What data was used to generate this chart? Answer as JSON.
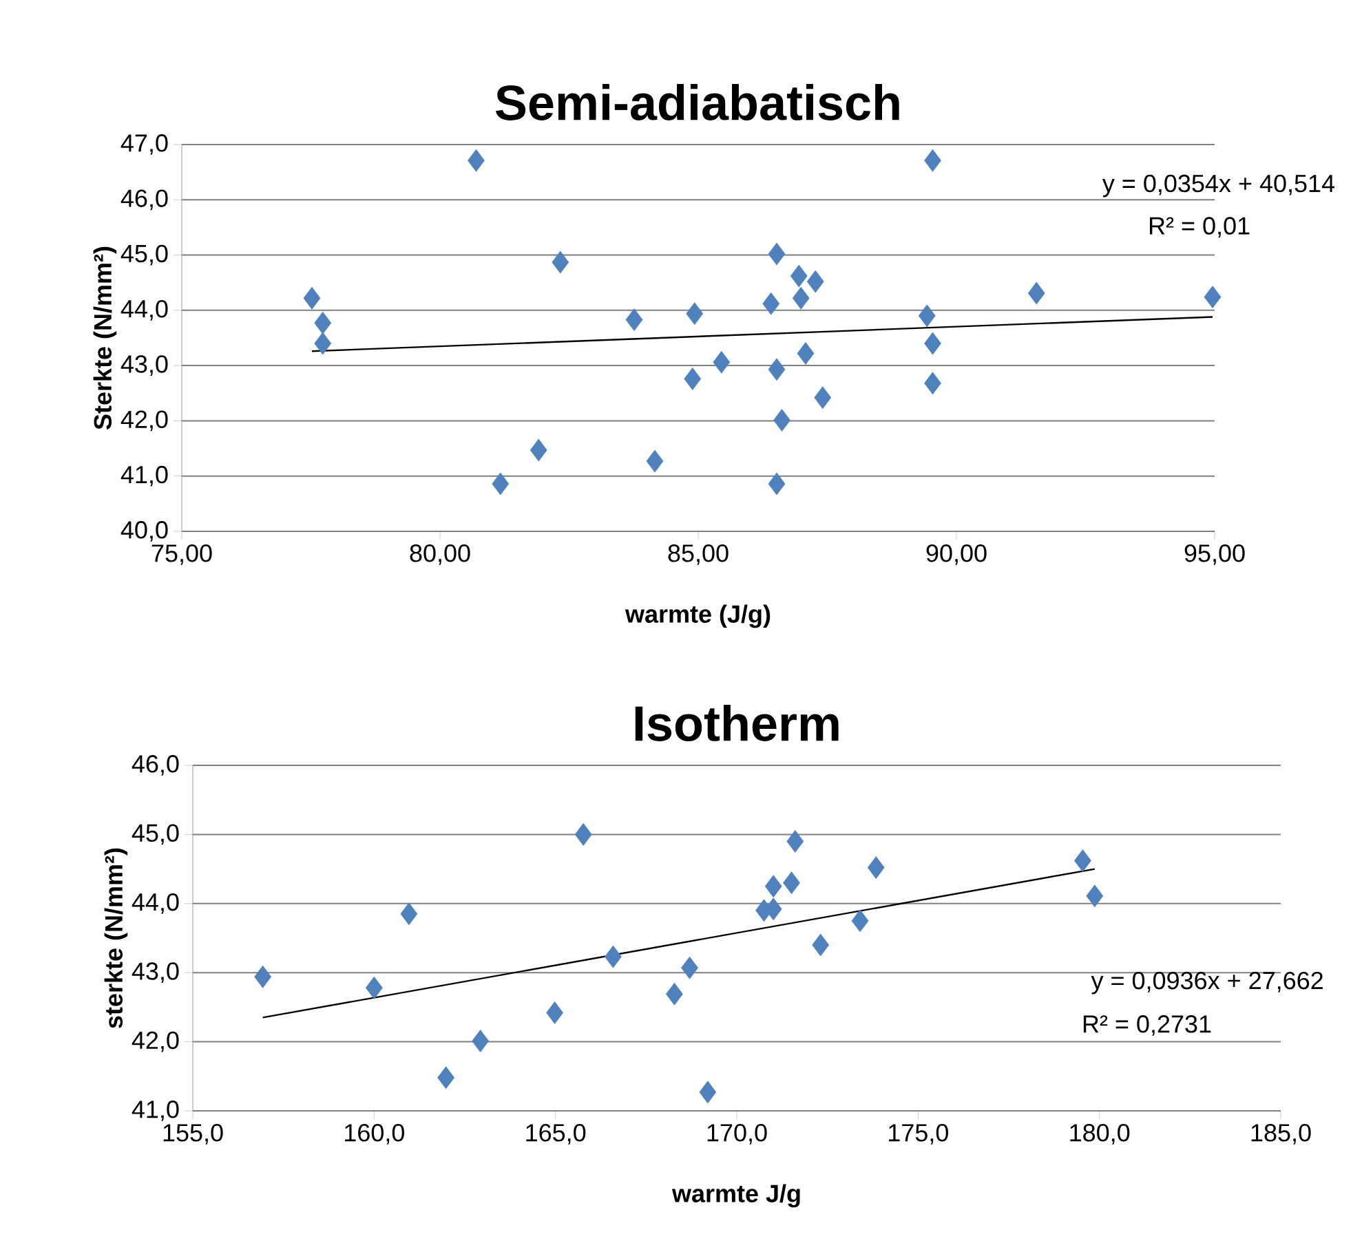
{
  "chart_data": [
    {
      "type": "scatter",
      "title": "Semi-adiabatisch",
      "xlabel": "warmte (J/g)",
      "ylabel": "Sterkte (N/mm²)",
      "xlim": [
        75,
        95
      ],
      "ylim": [
        40,
        47
      ],
      "xticks": [
        {
          "value": 75,
          "label": "75,00"
        },
        {
          "value": 80,
          "label": "80,00"
        },
        {
          "value": 85,
          "label": "85,00"
        },
        {
          "value": 90,
          "label": "90,00"
        },
        {
          "value": 95,
          "label": "95,00"
        }
      ],
      "yticks": [
        {
          "value": 40,
          "label": "40,0"
        },
        {
          "value": 41,
          "label": "41,0"
        },
        {
          "value": 42,
          "label": "42,0"
        },
        {
          "value": 43,
          "label": "43,0"
        },
        {
          "value": 44,
          "label": "44,0"
        },
        {
          "value": 45,
          "label": "45,0"
        },
        {
          "value": 46,
          "label": "46,0"
        },
        {
          "value": 47,
          "label": "47,0"
        }
      ],
      "grid": "y",
      "series": [
        {
          "marker": "diamond",
          "color": "#4f81bd",
          "x": [
            77.52,
            77.73,
            77.73,
            80.7,
            82.33,
            81.91,
            81.17,
            83.76,
            84.16,
            84.93,
            84.89,
            85.45,
            86.52,
            86.41,
            86.52,
            86.62,
            86.52,
            86.95,
            86.99,
            87.27,
            87.08,
            87.41,
            89.54,
            89.43,
            89.54,
            89.54,
            91.55,
            94.96
          ],
          "values": [
            44.22,
            43.77,
            43.4,
            46.71,
            44.87,
            41.47,
            40.86,
            43.83,
            41.27,
            43.94,
            42.76,
            43.06,
            45.02,
            44.12,
            42.93,
            42.01,
            40.86,
            44.62,
            44.22,
            44.52,
            43.22,
            42.42,
            46.71,
            43.9,
            43.4,
            42.68,
            44.31,
            44.24
          ]
        },
        {
          "type": "line",
          "marker": "none",
          "color": "#000000",
          "x": [
            77.52,
            94.96
          ],
          "values": [
            43.26,
            43.88
          ]
        }
      ],
      "annotations": [
        "y = 0,0354x + 40,514",
        "R² = 0,01"
      ]
    },
    {
      "type": "scatter",
      "title": "Isotherm",
      "xlabel": "warmte J/g",
      "ylabel": "sterkte (N/mm²)",
      "xlim": [
        155,
        185
      ],
      "ylim": [
        41,
        46
      ],
      "xticks": [
        {
          "value": 155,
          "label": "155,0"
        },
        {
          "value": 160,
          "label": "160,0"
        },
        {
          "value": 165,
          "label": "165,0"
        },
        {
          "value": 170,
          "label": "170,0"
        },
        {
          "value": 175,
          "label": "175,0"
        },
        {
          "value": 180,
          "label": "180,0"
        },
        {
          "value": 185,
          "label": "185,0"
        }
      ],
      "yticks": [
        {
          "value": 41,
          "label": "41,0"
        },
        {
          "value": 42,
          "label": "42,0"
        },
        {
          "value": 43,
          "label": "43,0"
        },
        {
          "value": 44,
          "label": "44,0"
        },
        {
          "value": 45,
          "label": "45,0"
        },
        {
          "value": 46,
          "label": "46,0"
        }
      ],
      "grid": "y",
      "series": [
        {
          "marker": "diamond",
          "color": "#4f81bd",
          "x": [
            156.93,
            160.0,
            160.96,
            161.98,
            162.93,
            164.98,
            165.77,
            166.59,
            168.28,
            168.7,
            169.2,
            170.75,
            171.01,
            171.01,
            171.51,
            171.61,
            172.31,
            173.4,
            173.84,
            179.54,
            179.87
          ],
          "values": [
            42.94,
            42.78,
            43.85,
            41.48,
            42.01,
            42.42,
            45.0,
            43.23,
            42.69,
            43.07,
            41.27,
            43.9,
            44.25,
            43.92,
            44.3,
            44.9,
            43.4,
            43.75,
            44.52,
            44.62,
            44.11
          ]
        },
        {
          "type": "line",
          "marker": "none",
          "color": "#000000",
          "x": [
            156.93,
            179.87
          ],
          "values": [
            42.35,
            44.5
          ]
        }
      ],
      "annotations": [
        "y = 0,0936x + 27,662",
        "R² = 0,2731"
      ]
    }
  ]
}
